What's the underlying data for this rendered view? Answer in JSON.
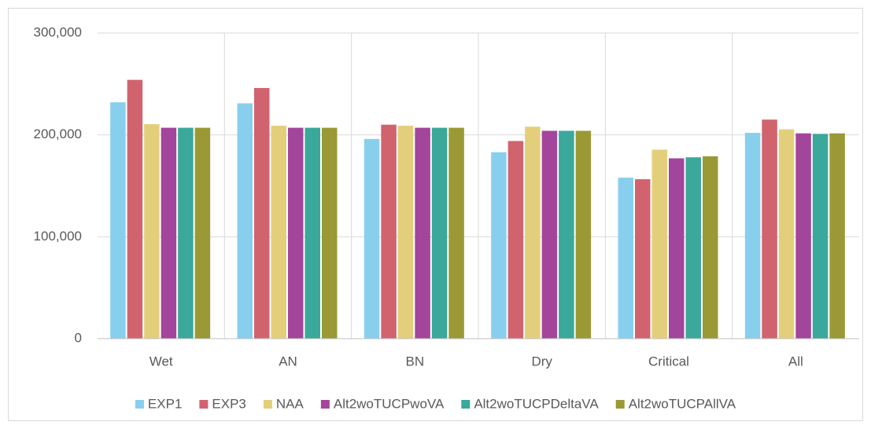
{
  "chart_data": {
    "type": "bar",
    "categories": [
      "Wet",
      "AN",
      "BN",
      "Dry",
      "Critical",
      "All"
    ],
    "series": [
      {
        "name": "EXP1",
        "color": "#88cfee",
        "values": [
          232000,
          231000,
          196000,
          183000,
          158000,
          202000
        ]
      },
      {
        "name": "EXP3",
        "color": "#d1636f",
        "values": [
          254000,
          246000,
          210000,
          194000,
          156500,
          215000
        ]
      },
      {
        "name": "NAA",
        "color": "#e3cf7b",
        "values": [
          210500,
          209000,
          209000,
          208000,
          185500,
          205500
        ]
      },
      {
        "name": "Alt2woTUCPwoVA",
        "color": "#a3459b",
        "values": [
          207000,
          207000,
          207000,
          204000,
          177000,
          201500
        ]
      },
      {
        "name": "Alt2woTUCPDeltaVA",
        "color": "#3aa89a",
        "values": [
          207000,
          207000,
          207000,
          204000,
          178000,
          201000
        ]
      },
      {
        "name": "Alt2woTUCPAllVA",
        "color": "#9a9935",
        "values": [
          207000,
          207000,
          207000,
          204000,
          179000,
          201500
        ]
      }
    ],
    "ylim": [
      0,
      300000
    ],
    "yticks": [
      0,
      {
        "value": 100000,
        "label": "100,000"
      },
      {
        "value": 200000,
        "label": "200,000"
      },
      {
        "value": 300000,
        "label": "300,000"
      }
    ],
    "grid": true,
    "legend": "bottom"
  }
}
